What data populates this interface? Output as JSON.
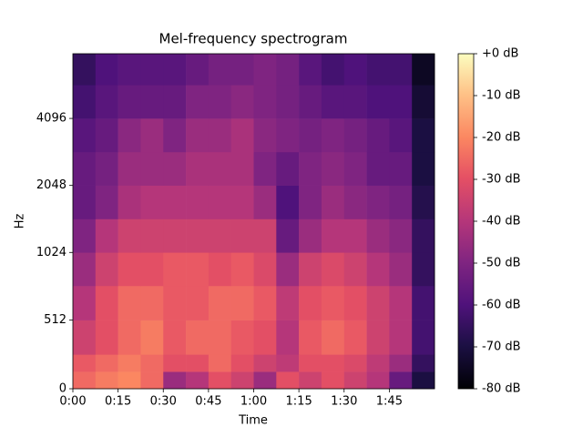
{
  "chart_data": {
    "type": "heatmap",
    "title": "Mel-frequency spectrogram",
    "xlabel": "Time",
    "ylabel": "Hz",
    "xlim": [
      0,
      120
    ],
    "ylim": [
      0,
      8000
    ],
    "yscale": "symlog",
    "linthresh": 1000,
    "log_base": 2,
    "xticks": [
      {
        "value": 0,
        "label": "0:00"
      },
      {
        "value": 15,
        "label": "0:15"
      },
      {
        "value": 30,
        "label": "0:30"
      },
      {
        "value": 45,
        "label": "0:45"
      },
      {
        "value": 60,
        "label": "1:00"
      },
      {
        "value": 75,
        "label": "1:15"
      },
      {
        "value": 90,
        "label": "1:30"
      },
      {
        "value": 105,
        "label": "1:45"
      }
    ],
    "yticks": [
      0,
      512,
      1024,
      2048,
      4096
    ],
    "colormap": "magma",
    "clim": [
      -80,
      0
    ],
    "cticks": [
      {
        "value": 0,
        "label": "+0 dB"
      },
      {
        "value": -10,
        "label": "-10 dB"
      },
      {
        "value": -20,
        "label": "-20 dB"
      },
      {
        "value": -30,
        "label": "-30 dB"
      },
      {
        "value": -40,
        "label": "-40 dB"
      },
      {
        "value": -50,
        "label": "-50 dB"
      },
      {
        "value": -60,
        "label": "-60 dB"
      },
      {
        "value": -70,
        "label": "-70 dB"
      },
      {
        "value": -80,
        "label": "-80 dB"
      }
    ],
    "x_edges": [
      0,
      7.5,
      15,
      22.5,
      30,
      37.5,
      45,
      52.5,
      60,
      67.5,
      75,
      82.5,
      90,
      97.5,
      105,
      112.5,
      120
    ],
    "y_edges": [
      0,
      128,
      256,
      512,
      768,
      1024,
      1448,
      2048,
      2896,
      4096,
      5793,
      8000
    ],
    "z": [
      [
        -25,
        -22,
        -20,
        -25,
        -45,
        -40,
        -30,
        -35,
        -45,
        -30,
        -35,
        -30,
        -35,
        -40,
        -55,
        -70
      ],
      [
        -28,
        -25,
        -22,
        -25,
        -30,
        -30,
        -25,
        -30,
        -35,
        -38,
        -30,
        -30,
        -32,
        -38,
        -45,
        -65
      ],
      [
        -35,
        -30,
        -25,
        -22,
        -28,
        -25,
        -25,
        -28,
        -30,
        -40,
        -28,
        -25,
        -28,
        -35,
        -40,
        -62
      ],
      [
        -40,
        -30,
        -25,
        -25,
        -28,
        -28,
        -25,
        -25,
        -28,
        -38,
        -30,
        -28,
        -30,
        -35,
        -40,
        -62
      ],
      [
        -45,
        -35,
        -30,
        -30,
        -28,
        -28,
        -30,
        -28,
        -32,
        -45,
        -35,
        -32,
        -35,
        -40,
        -45,
        -65
      ],
      [
        -50,
        -40,
        -35,
        -35,
        -35,
        -35,
        -35,
        -35,
        -35,
        -55,
        -45,
        -40,
        -40,
        -45,
        -48,
        -65
      ],
      [
        -55,
        -50,
        -42,
        -40,
        -40,
        -40,
        -40,
        -40,
        -45,
        -60,
        -50,
        -45,
        -48,
        -50,
        -52,
        -68
      ],
      [
        -55,
        -52,
        -45,
        -45,
        -45,
        -42,
        -42,
        -42,
        -50,
        -55,
        -50,
        -48,
        -50,
        -55,
        -55,
        -70
      ],
      [
        -58,
        -55,
        -48,
        -45,
        -50,
        -45,
        -45,
        -42,
        -48,
        -50,
        -52,
        -50,
        -52,
        -55,
        -58,
        -70
      ],
      [
        -62,
        -58,
        -55,
        -55,
        -55,
        -50,
        -50,
        -48,
        -50,
        -52,
        -55,
        -58,
        -58,
        -60,
        -60,
        -72
      ],
      [
        -65,
        -60,
        -58,
        -58,
        -58,
        -55,
        -52,
        -52,
        -50,
        -52,
        -58,
        -62,
        -60,
        -62,
        -62,
        -75
      ]
    ]
  }
}
